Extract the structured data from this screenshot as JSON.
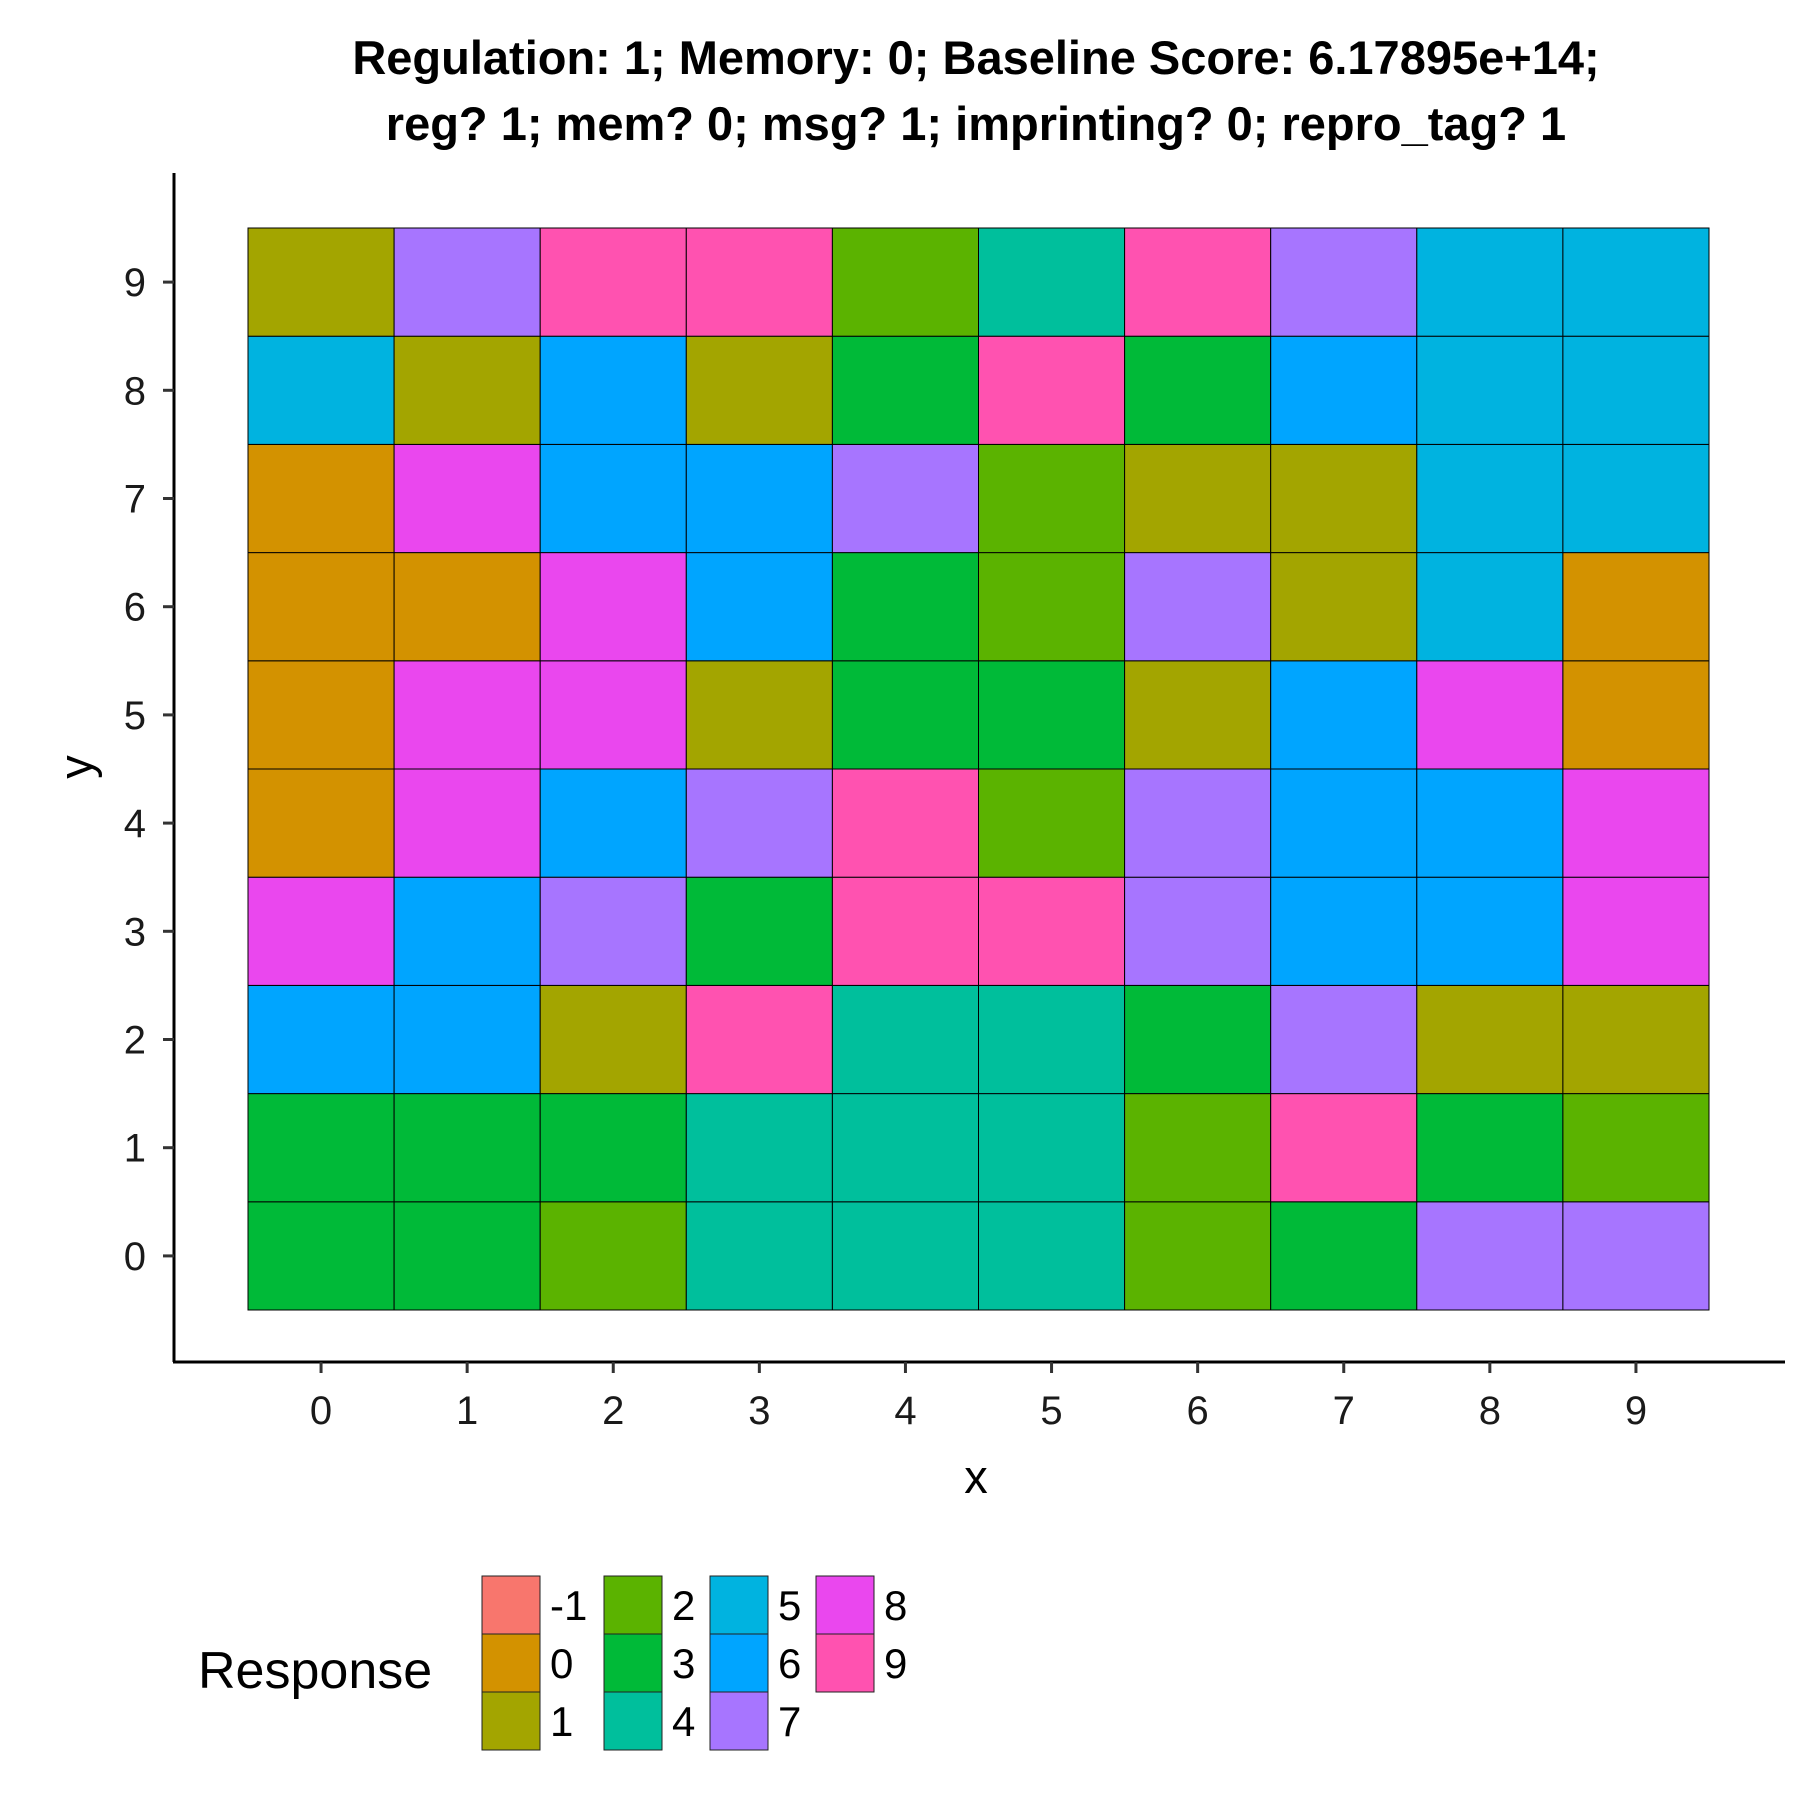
{
  "chart_data": {
    "type": "heatmap",
    "title_lines": [
      "Regulation: 1; Memory: 0; Baseline Score: 6.17895e+14;",
      "reg? 1; mem? 0; msg? 1; imprinting? 0; repro_tag? 1"
    ],
    "xlabel": "x",
    "ylabel": "y",
    "x_ticks": [
      "0",
      "1",
      "2",
      "3",
      "4",
      "5",
      "6",
      "7",
      "8",
      "9"
    ],
    "y_ticks": [
      "0",
      "1",
      "2",
      "3",
      "4",
      "5",
      "6",
      "7",
      "8",
      "9"
    ],
    "grid": false,
    "legend": {
      "title": "Response",
      "placement": "bottom",
      "levels": [
        "-1",
        "0",
        "1",
        "2",
        "3",
        "4",
        "5",
        "6",
        "7",
        "8",
        "9"
      ],
      "colors": {
        "-1": "#F8766D",
        "0": "#D39200",
        "1": "#A3A500",
        "2": "#5BB300",
        "3": "#00BA38",
        "4": "#00BF9C",
        "5": "#00B3E0",
        "6": "#00A5FF",
        "7": "#A775FF",
        "8": "#EA47EE",
        "9": "#FF52B0"
      }
    },
    "rows_by_y": [
      {
        "y": 0,
        "values": [
          3,
          3,
          2,
          4,
          4,
          4,
          2,
          3,
          7,
          7
        ]
      },
      {
        "y": 1,
        "values": [
          3,
          3,
          3,
          4,
          4,
          4,
          2,
          9,
          3,
          2
        ]
      },
      {
        "y": 2,
        "values": [
          6,
          6,
          1,
          9,
          4,
          4,
          3,
          7,
          1,
          1
        ]
      },
      {
        "y": 3,
        "values": [
          8,
          6,
          7,
          3,
          9,
          9,
          7,
          6,
          6,
          8
        ]
      },
      {
        "y": 4,
        "values": [
          0,
          8,
          6,
          7,
          9,
          2,
          7,
          6,
          6,
          8
        ]
      },
      {
        "y": 5,
        "values": [
          0,
          8,
          8,
          1,
          3,
          3,
          1,
          6,
          8,
          0
        ]
      },
      {
        "y": 6,
        "values": [
          0,
          0,
          8,
          6,
          3,
          2,
          7,
          1,
          5,
          0
        ]
      },
      {
        "y": 7,
        "values": [
          0,
          8,
          6,
          6,
          7,
          2,
          1,
          1,
          5,
          5
        ]
      },
      {
        "y": 8,
        "values": [
          5,
          1,
          6,
          1,
          3,
          9,
          3,
          6,
          5,
          5
        ]
      },
      {
        "y": 9,
        "values": [
          1,
          7,
          9,
          9,
          2,
          4,
          9,
          7,
          5,
          5
        ]
      }
    ]
  }
}
